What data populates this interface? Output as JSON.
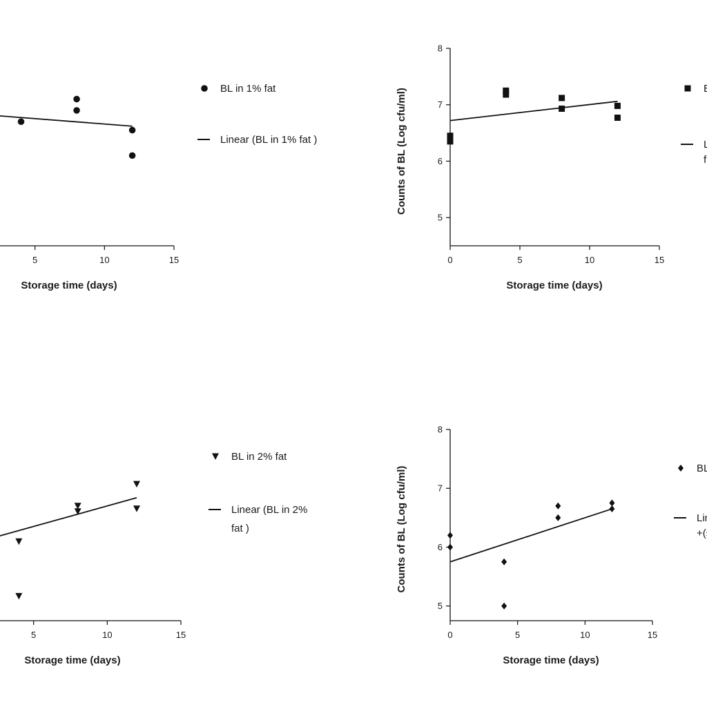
{
  "chart_data": [
    {
      "type": "scatter",
      "xlabel": "Storage time (days)",
      "ylabel": "",
      "xlim": [
        0,
        15
      ],
      "ylim": [
        4.5,
        8
      ],
      "x_ticks": [
        "5",
        "10",
        "15"
      ],
      "y_ticks": [],
      "marker": "circle",
      "points": [
        {
          "x": 4,
          "y": 6.7
        },
        {
          "x": 8,
          "y": 7.1
        },
        {
          "x": 8,
          "y": 6.9
        },
        {
          "x": 12,
          "y": 6.55
        },
        {
          "x": 12,
          "y": 6.1
        }
      ],
      "fit_line": {
        "x": [
          0,
          12
        ],
        "y": [
          6.85,
          6.62
        ]
      },
      "legend": [
        {
          "kind": "marker",
          "lines": [
            "BL in 1% fat"
          ]
        },
        {
          "kind": "line",
          "lines": [
            "Linear (BL in 1% fat )"
          ]
        }
      ]
    },
    {
      "type": "scatter",
      "xlabel": "Storage time (days)",
      "ylabel": "Counts of BL (Log cfu/ml)",
      "xlim": [
        0,
        15
      ],
      "ylim": [
        4.5,
        8
      ],
      "x_ticks": [
        "0",
        "5",
        "10",
        "15"
      ],
      "y_ticks": [
        "5",
        "6",
        "7",
        "8"
      ],
      "marker": "square",
      "points": [
        {
          "x": 0,
          "y": 6.45
        },
        {
          "x": 0,
          "y": 6.35
        },
        {
          "x": 4,
          "y": 7.25
        },
        {
          "x": 4,
          "y": 7.18
        },
        {
          "x": 8,
          "y": 7.12
        },
        {
          "x": 8,
          "y": 6.93
        },
        {
          "x": 12,
          "y": 6.98
        },
        {
          "x": 12,
          "y": 6.77
        }
      ],
      "fit_line": {
        "x": [
          0,
          12
        ],
        "y": [
          6.72,
          7.06
        ]
      },
      "legend": [
        {
          "kind": "marker",
          "lines": [
            "B"
          ]
        },
        {
          "kind": "line",
          "lines": [
            "L",
            "f"
          ]
        }
      ]
    },
    {
      "type": "scatter",
      "xlabel": "Storage time (days)",
      "ylabel": "",
      "xlim": [
        0,
        15
      ],
      "ylim": [
        4.5,
        8
      ],
      "x_ticks": [
        "5",
        "10",
        "15"
      ],
      "y_ticks": [],
      "marker": "triangle-down",
      "points": [
        {
          "x": 4,
          "y": 5.95
        },
        {
          "x": 4,
          "y": 4.95
        },
        {
          "x": 8,
          "y": 6.6
        },
        {
          "x": 8,
          "y": 6.5
        },
        {
          "x": 12,
          "y": 7.0
        },
        {
          "x": 12,
          "y": 6.55
        }
      ],
      "fit_line": {
        "x": [
          0,
          12
        ],
        "y": [
          5.85,
          6.75
        ]
      },
      "legend": [
        {
          "kind": "marker",
          "lines": [
            "BL in 2% fat"
          ]
        },
        {
          "kind": "line",
          "lines": [
            "Linear (BL in 2%",
            "fat )"
          ]
        }
      ]
    },
    {
      "type": "scatter",
      "xlabel": "Storage time (days)",
      "ylabel": "Counts of BL (Log cfu/ml)",
      "xlim": [
        0,
        15
      ],
      "ylim": [
        4.75,
        8
      ],
      "x_ticks": [
        "0",
        "5",
        "10",
        "15"
      ],
      "y_ticks": [
        "5",
        "6",
        "7",
        "8"
      ],
      "marker": "diamond",
      "points": [
        {
          "x": 0,
          "y": 6.2
        },
        {
          "x": 0,
          "y": 6.0
        },
        {
          "x": 4,
          "y": 5.75
        },
        {
          "x": 4,
          "y": 5.0
        },
        {
          "x": 8,
          "y": 6.7
        },
        {
          "x": 8,
          "y": 6.5
        },
        {
          "x": 12,
          "y": 6.75
        },
        {
          "x": 12,
          "y": 6.65
        }
      ],
      "fit_line": {
        "x": [
          0,
          12
        ],
        "y": [
          5.75,
          6.65
        ]
      },
      "legend": [
        {
          "kind": "marker",
          "lines": [
            "BL"
          ]
        },
        {
          "kind": "line",
          "lines": [
            "Lin",
            "+(s"
          ]
        }
      ]
    }
  ]
}
